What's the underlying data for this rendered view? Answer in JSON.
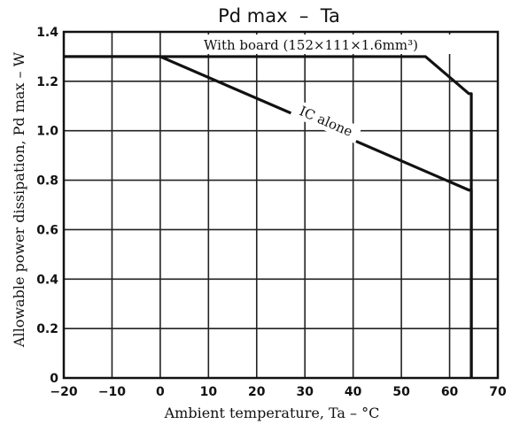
{
  "chart_data": {
    "type": "line",
    "title": "Pd max  –  Ta",
    "xlabel": "Ambient temperature, Ta – °C",
    "ylabel": "Allowable power dissipation, Pd max – W",
    "xlim": [
      -20,
      70
    ],
    "ylim": [
      0,
      1.4
    ],
    "x_ticks": [
      -20,
      -10,
      0,
      10,
      20,
      30,
      40,
      50,
      60,
      70
    ],
    "x_tick_labels": [
      "−20",
      "−10",
      "0",
      "10",
      "20",
      "30",
      "40",
      "50",
      "60",
      "70"
    ],
    "y_ticks": [
      0,
      0.2,
      0.4,
      0.6,
      0.8,
      1.0,
      1.2,
      1.4
    ],
    "y_tick_labels": [
      "0",
      "0.2",
      "0.4",
      "0.6",
      "0.8",
      "1.0",
      "1.2",
      "1.4"
    ],
    "grid": true,
    "series": [
      {
        "name": "With board (152×111×1.6mm³)",
        "x": [
          -20,
          55,
          64,
          64.5,
          64.5
        ],
        "y": [
          1.3,
          1.3,
          1.15,
          1.15,
          0
        ]
      },
      {
        "name": "IC alone",
        "x": [
          -20,
          0,
          64,
          64.5,
          64.5
        ],
        "y": [
          1.3,
          1.3,
          0.76,
          0.76,
          0
        ]
      }
    ],
    "annotations": [
      {
        "text": "With board (152×111×1.6mm³)",
        "series": 0
      },
      {
        "text": "IC alone",
        "series": 1
      }
    ]
  }
}
